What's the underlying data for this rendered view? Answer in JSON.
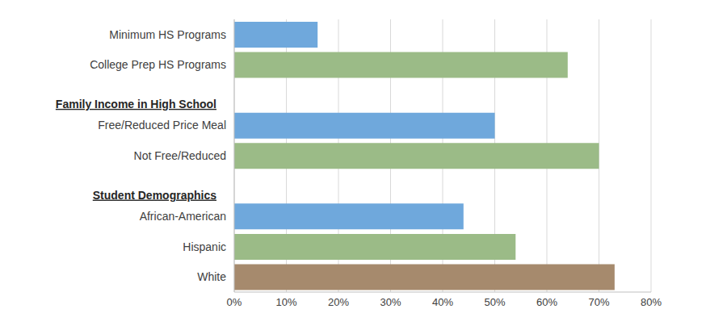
{
  "chart_data": {
    "type": "bar",
    "orientation": "horizontal",
    "categories": [
      "Minimum HS Programs",
      "College Prep HS Programs",
      "Family Income in High School",
      "Free/Reduced Price Meal",
      "Not Free/Reduced",
      "Student Demographics",
      "African-American",
      "Hispanic",
      "White"
    ],
    "values": [
      16,
      64,
      null,
      50,
      70,
      null,
      44,
      54,
      73
    ],
    "colors": [
      "#6FA8DC",
      "#9BBB87",
      null,
      "#6FA8DC",
      "#9BBB87",
      null,
      "#6FA8DC",
      "#9BBB87",
      "#A68A6D"
    ],
    "xlim": [
      0,
      80
    ],
    "xticks": [
      {
        "value": 0,
        "label": "0%"
      },
      {
        "value": 10,
        "label": "10%"
      },
      {
        "value": 20,
        "label": "20%"
      },
      {
        "value": 30,
        "label": "30%"
      },
      {
        "value": 40,
        "label": "40%"
      },
      {
        "value": 50,
        "label": "50%"
      },
      {
        "value": 60,
        "label": "60%"
      },
      {
        "value": 70,
        "label": "70%"
      },
      {
        "value": 80,
        "label": "80%"
      }
    ],
    "grid": true
  }
}
